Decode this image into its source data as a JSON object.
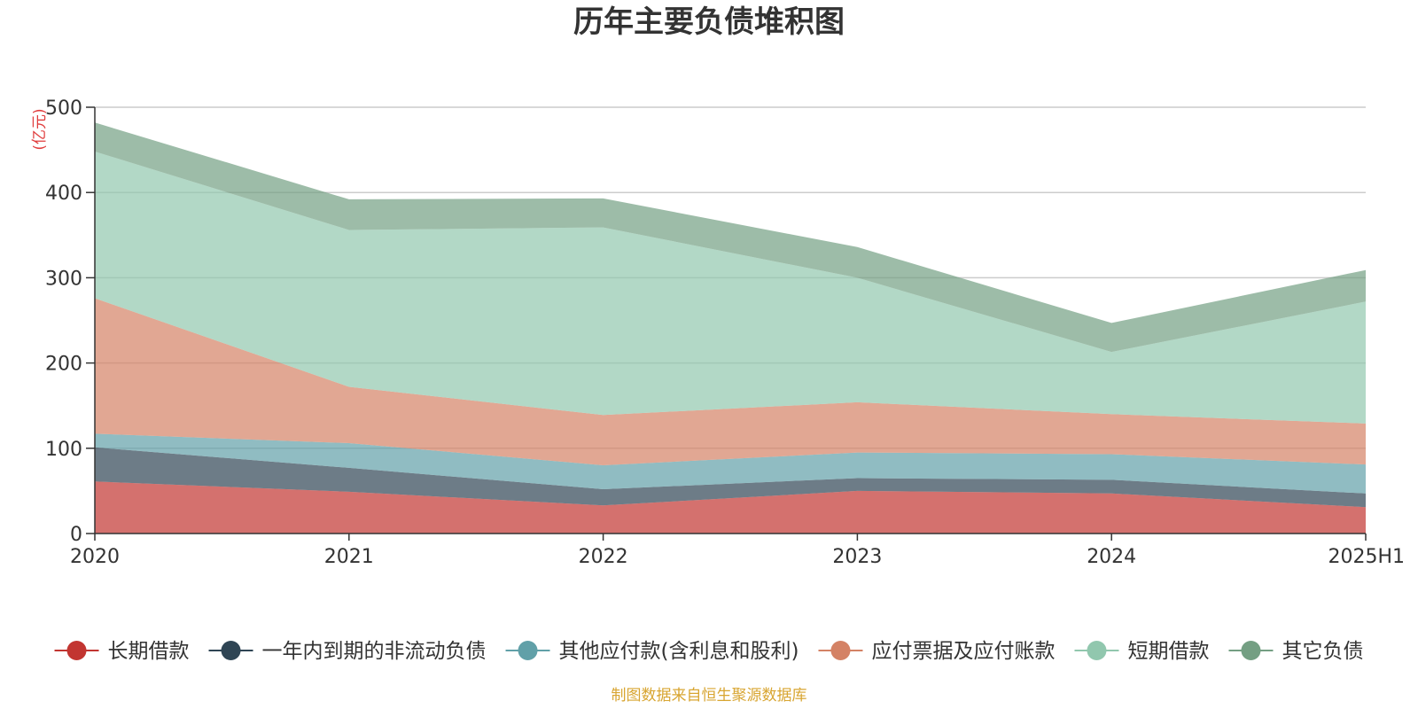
{
  "chart_data": {
    "type": "area",
    "stacked": true,
    "title": "历年主要负债堆积图",
    "y_unit_label": "(亿元)",
    "categories": [
      "2020",
      "2021",
      "2022",
      "2023",
      "2024",
      "2025H1"
    ],
    "ylim": [
      0,
      500
    ],
    "yticks": [
      0,
      100,
      200,
      300,
      400,
      500
    ],
    "grid": true,
    "legend_position": "bottom",
    "series": [
      {
        "name": "长期借款",
        "color": "#c23531",
        "values": [
          61,
          49,
          33,
          50,
          47,
          31
        ]
      },
      {
        "name": "一年内到期的非流动负债",
        "color": "#2f4554",
        "values": [
          40,
          28,
          19,
          15,
          16,
          16
        ]
      },
      {
        "name": "其他应付款(含利息和股利)",
        "color": "#61a0a8",
        "values": [
          16,
          29,
          28,
          30,
          30,
          34
        ]
      },
      {
        "name": "应付票据及应付账款",
        "color": "#d48265",
        "values": [
          159,
          66,
          59,
          59,
          47,
          48
        ]
      },
      {
        "name": "短期借款",
        "color": "#91c7ae",
        "values": [
          172,
          184,
          220,
          146,
          73,
          143
        ]
      },
      {
        "name": "其它负债",
        "color": "#749f83",
        "values": [
          34,
          36,
          34,
          36,
          34,
          37
        ]
      }
    ],
    "source_note": "制图数据来自恒生聚源数据库"
  }
}
